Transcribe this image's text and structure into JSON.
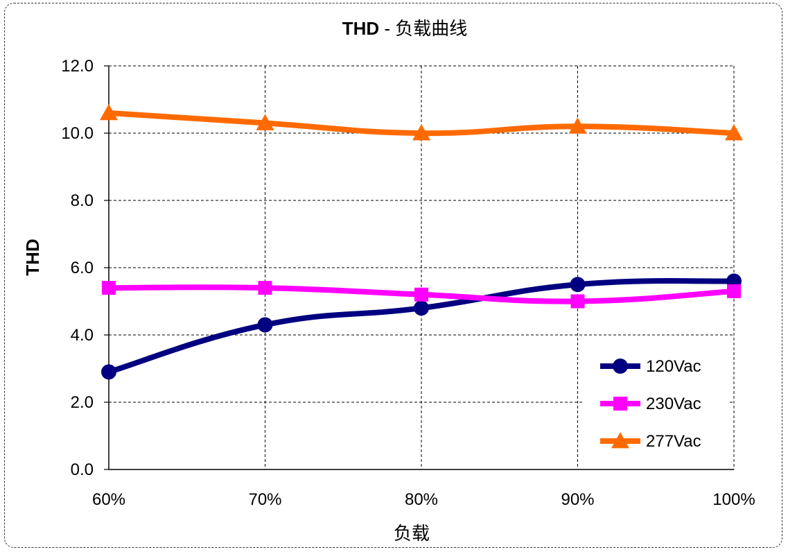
{
  "chart_data": {
    "type": "line",
    "title_bold": "THD",
    "title_rest": " - 负载曲线",
    "xlabel": "负载",
    "ylabel": "THD",
    "categories": [
      "60%",
      "70%",
      "80%",
      "90%",
      "100%"
    ],
    "ylim": [
      0,
      12
    ],
    "yticks": [
      "0.0",
      "2.0",
      "4.0",
      "6.0",
      "8.0",
      "10.0",
      "12.0"
    ],
    "grid": true,
    "legend_position": "bottom-right",
    "series": [
      {
        "name": "120Vac",
        "marker": "circle",
        "color": "#000080",
        "values": [
          2.9,
          4.3,
          4.8,
          5.5,
          5.6
        ]
      },
      {
        "name": "230Vac",
        "marker": "square",
        "color": "#FF00FF",
        "values": [
          5.4,
          5.4,
          5.2,
          5.0,
          5.3
        ]
      },
      {
        "name": "277Vac",
        "marker": "triangle",
        "color": "#FF6A00",
        "values": [
          10.6,
          10.3,
          10.0,
          10.2,
          10.0
        ]
      }
    ]
  }
}
